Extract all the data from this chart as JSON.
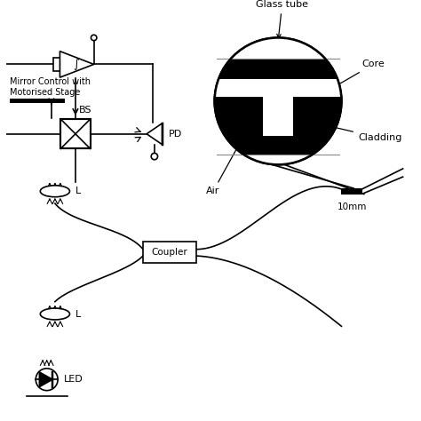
{
  "bg_color": "#ffffff",
  "line_color": "#000000",
  "labels": {
    "glass_tube": "Glass tube",
    "core": "Core",
    "cladding": "Cladding",
    "air": "Air",
    "bs": "BS",
    "pd": "PD",
    "l1": "L",
    "l2": "L",
    "led": "LED",
    "coupler": "Coupler",
    "mirror_control": "Mirror Control with\nMotorised Stage",
    "tenmm": "10mm"
  }
}
